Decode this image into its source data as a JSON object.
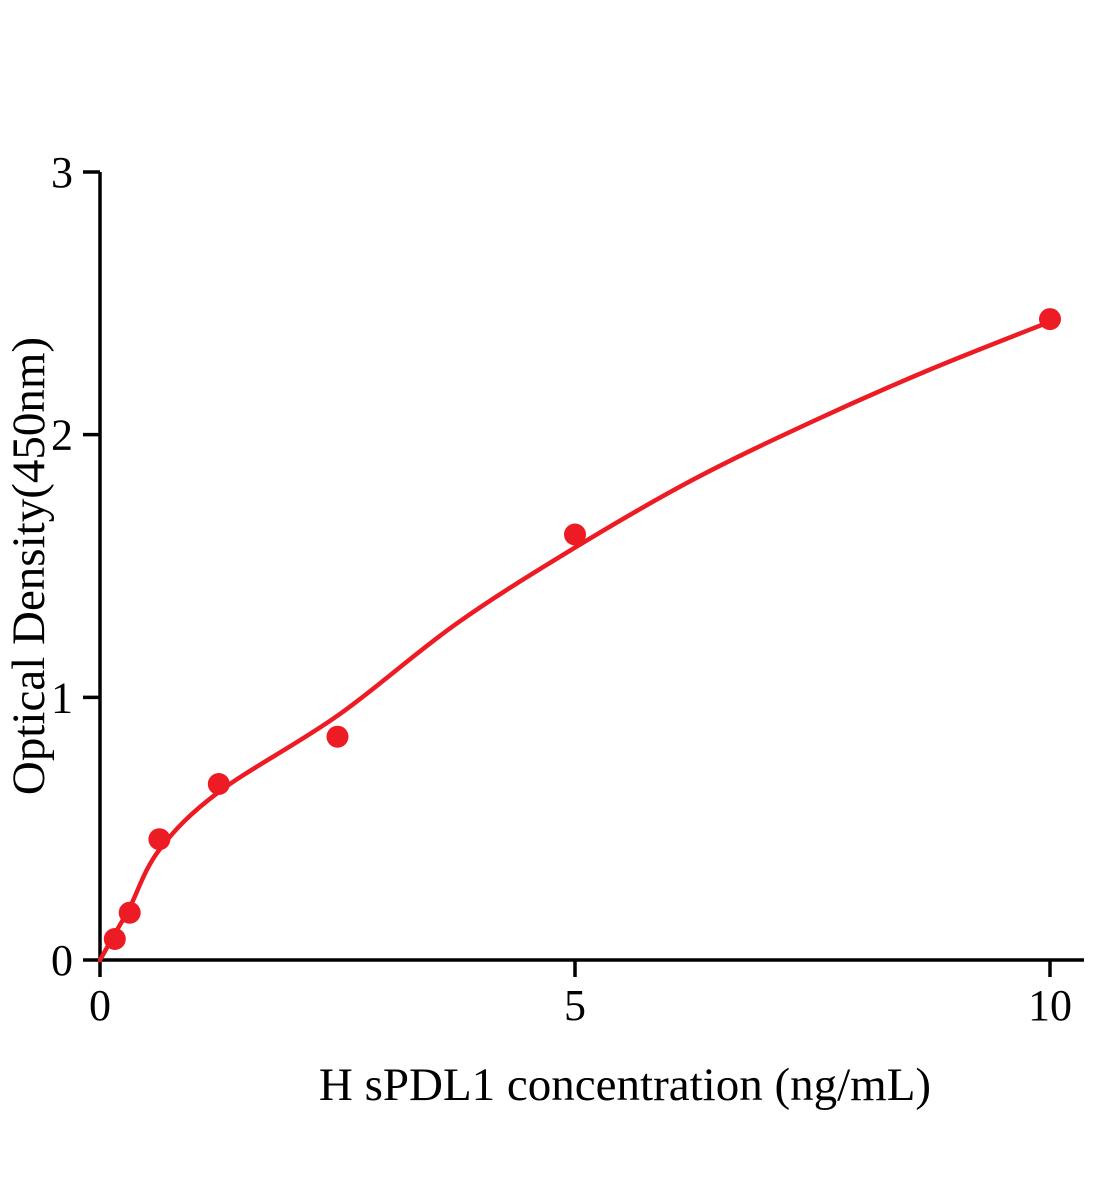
{
  "page": {
    "background": "#ffffff"
  },
  "chart_data": {
    "type": "scatter",
    "title": "",
    "xlabel": "H sPDL1 concentration (ng/mL)",
    "ylabel": "Optical Density(450nm)",
    "xlim": [
      0,
      10
    ],
    "ylim": [
      0,
      3
    ],
    "x_ticks": [
      0,
      5,
      10
    ],
    "y_ticks": [
      0,
      1,
      2,
      3
    ],
    "grid": false,
    "legend": false,
    "accent_color": "#ed1c24",
    "axis_color": "#000000",
    "series": [
      {
        "name": "standard-points",
        "style": "scatter",
        "x": [
          0.156,
          0.3125,
          0.625,
          1.25,
          2.5,
          5,
          10
        ],
        "y": [
          0.08,
          0.18,
          0.46,
          0.67,
          0.85,
          1.62,
          2.44
        ]
      },
      {
        "name": "fitted-curve",
        "style": "line",
        "x": [
          0,
          0.156,
          0.3125,
          0.625,
          1.25,
          2.5,
          3.75,
          5,
          6.25,
          7.5,
          8.75,
          10
        ],
        "y": [
          0,
          0.1,
          0.2,
          0.42,
          0.64,
          0.93,
          1.28,
          1.57,
          1.83,
          2.05,
          2.25,
          2.43
        ]
      }
    ]
  }
}
